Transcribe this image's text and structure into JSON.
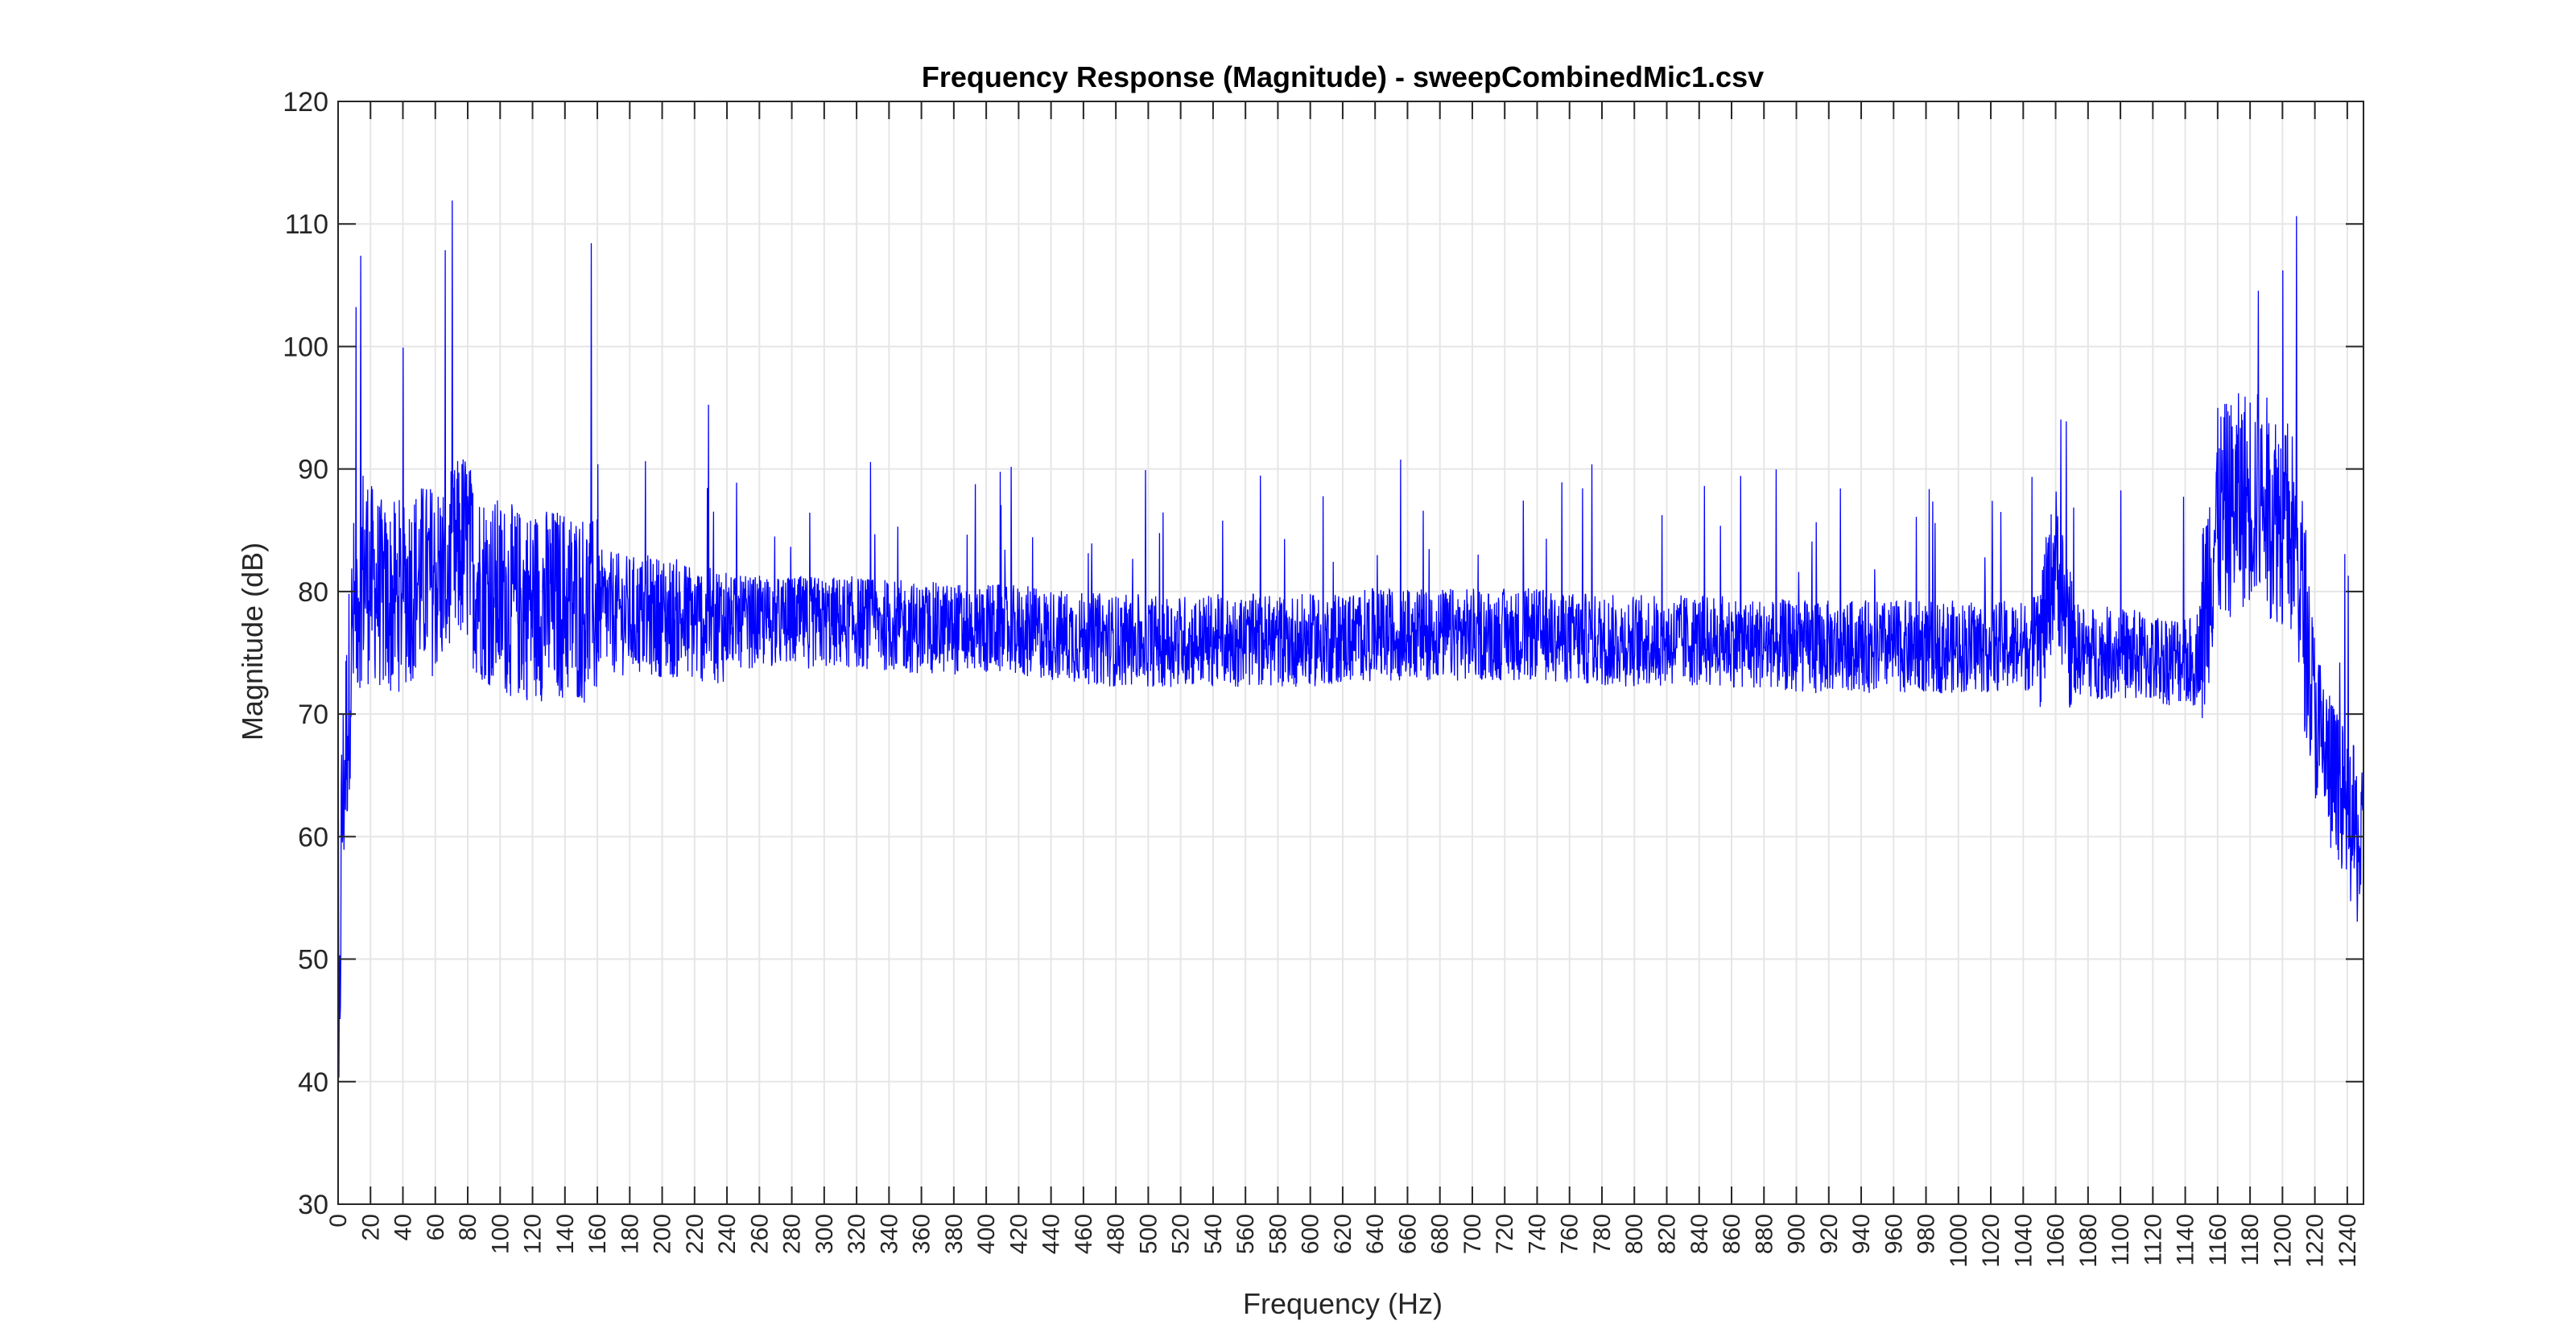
{
  "chart_data": {
    "type": "line",
    "title": "Frequency Response (Magnitude) - sweepCombinedMic1.csv",
    "xlabel": "Frequency (Hz)",
    "ylabel": "Magnitude (dB)",
    "xlim": [
      0,
      1250
    ],
    "ylim": [
      30,
      120
    ],
    "grid": true,
    "legend": "none",
    "x_ticks": [
      0,
      20,
      40,
      60,
      80,
      100,
      120,
      140,
      160,
      180,
      200,
      220,
      240,
      260,
      280,
      300,
      320,
      340,
      360,
      380,
      400,
      420,
      440,
      460,
      480,
      500,
      520,
      540,
      560,
      580,
      600,
      620,
      640,
      660,
      680,
      700,
      720,
      740,
      760,
      780,
      800,
      820,
      840,
      860,
      880,
      900,
      920,
      940,
      960,
      980,
      1000,
      1020,
      1040,
      1060,
      1080,
      1100,
      1120,
      1140,
      1160,
      1180,
      1200,
      1220,
      1240
    ],
    "y_ticks": [
      30,
      40,
      50,
      60,
      70,
      80,
      90,
      100,
      110,
      120
    ],
    "series": [
      {
        "color": "#0000ff",
        "x": [
          0,
          1,
          2,
          4,
          6,
          8,
          10,
          12,
          15,
          20,
          25,
          30,
          40,
          50,
          60,
          70,
          78,
          85,
          95,
          110,
          125,
          140,
          160,
          180,
          200,
          220,
          240,
          280,
          320,
          360,
          400,
          440,
          480,
          520,
          560,
          600,
          640,
          680,
          700,
          740,
          780,
          820,
          860,
          900,
          940,
          980,
          1020,
          1040,
          1050,
          1055,
          1060,
          1065,
          1070,
          1080,
          1100,
          1120,
          1140,
          1145,
          1150,
          1155,
          1160,
          1170,
          1180,
          1190,
          1200,
          1205,
          1210,
          1215,
          1220,
          1225,
          1230,
          1235,
          1240,
          1245,
          1250
        ],
        "y": [
          30,
          45,
          60,
          66,
          70,
          75,
          78,
          80,
          82,
          81,
          80,
          79,
          80,
          81,
          81,
          82,
          84,
          81,
          80,
          79,
          79,
          79,
          78.5,
          78,
          78,
          77.5,
          77.5,
          77.5,
          77.5,
          77,
          77,
          76.5,
          76,
          76,
          76,
          76,
          76.5,
          76.5,
          76.5,
          76.5,
          76,
          76,
          76,
          75.5,
          75.5,
          75.5,
          75.5,
          75.5,
          76,
          79,
          83,
          79,
          75.5,
          75,
          75,
          74.5,
          74.5,
          74,
          76,
          82,
          86,
          87,
          88,
          87,
          86,
          85,
          82,
          76,
          70,
          67,
          65,
          63,
          62,
          60,
          58
        ]
      }
    ]
  }
}
